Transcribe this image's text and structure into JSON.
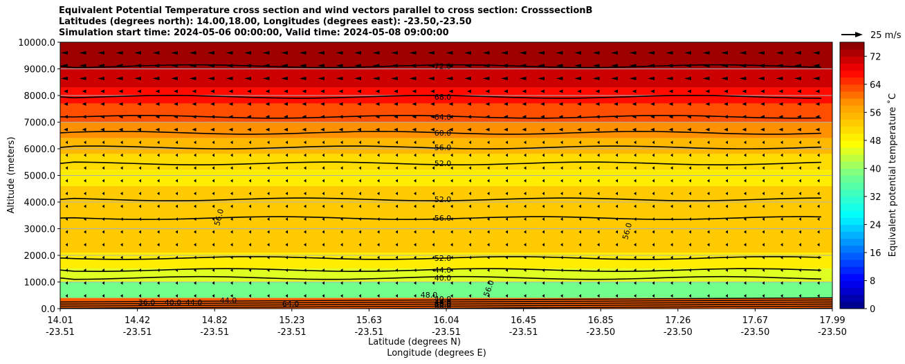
{
  "title_lines": [
    "Equivalent Potential Temperature cross section and wind vectors parallel to cross section: CrosssectionB",
    "Latitudes (degrees north): 14.00,18.00, Longitudes (degrees east): -23.50,-23.50",
    "Simulation start time: 2024-05-06 00:00:00, Valid time: 2024-05-08 09:00:00"
  ],
  "chart_data": {
    "type": "contourf",
    "ylabel": "Altitude (meters)",
    "xlabel_lat": "Latitude (degrees N)",
    "xlabel_lon": "Longitude (degrees E)",
    "ylim": [
      0,
      10000
    ],
    "yticks": [
      "0.0",
      "1000.0",
      "2000.0",
      "3000.0",
      "4000.0",
      "5000.0",
      "6000.0",
      "7000.0",
      "8000.0",
      "9000.0",
      "10000.0"
    ],
    "xticks": [
      {
        "lat": "14.01",
        "lon": "-23.51"
      },
      {
        "lat": "14.42",
        "lon": "-23.51"
      },
      {
        "lat": "14.82",
        "lon": "-23.51"
      },
      {
        "lat": "15.23",
        "lon": "-23.51"
      },
      {
        "lat": "15.63",
        "lon": "-23.51"
      },
      {
        "lat": "16.04",
        "lon": "-23.51"
      },
      {
        "lat": "16.45",
        "lon": "-23.51"
      },
      {
        "lat": "16.85",
        "lon": "-23.50"
      },
      {
        "lat": "17.26",
        "lon": "-23.50"
      },
      {
        "lat": "17.67",
        "lon": "-23.50"
      },
      {
        "lat": "17.99",
        "lon": "-23.50"
      }
    ],
    "colorbar": {
      "label": "Equivalent potential temperature ˚C",
      "range": [
        0,
        76
      ],
      "ticks": [
        "0",
        "8",
        "16",
        "24",
        "32",
        "40",
        "48",
        "56",
        "64",
        "72"
      ]
    },
    "quiver_key": "25 m/s",
    "contours": [
      {
        "level": "72.0",
        "altitude": 9100
      },
      {
        "level": "68.0",
        "altitude": 7950
      },
      {
        "level": "64.0",
        "altitude": 7200
      },
      {
        "level": "60.0",
        "altitude": 6600
      },
      {
        "level": "56.0",
        "altitude": 6050
      },
      {
        "level": "52.0",
        "altitude": 5450
      },
      {
        "level": "52.0",
        "altitude": 4100
      },
      {
        "level": "56.0",
        "altitude": 3400
      },
      {
        "level": "52.0",
        "altitude": 1900
      },
      {
        "level": "44.0",
        "altitude": 1450
      },
      {
        "level": "40.0",
        "altitude": 1150
      }
    ],
    "extra_contour_labels": [
      "56.0",
      "56.0",
      "56.0",
      "48.0",
      "44.0",
      "36.0",
      "40.0",
      "44.0",
      "64.0",
      "40.0",
      "44.0",
      "48.0",
      "60.0",
      "68.0"
    ],
    "equiv_temp_bands": [
      {
        "from": 9000,
        "to": 10000,
        "value": 74
      },
      {
        "from": 8300,
        "to": 9000,
        "value": 71
      },
      {
        "from": 7700,
        "to": 8300,
        "value": 67
      },
      {
        "from": 7000,
        "to": 7700,
        "value": 63
      },
      {
        "from": 6400,
        "to": 7000,
        "value": 59
      },
      {
        "from": 5800,
        "to": 6400,
        "value": 55
      },
      {
        "from": 5200,
        "to": 5800,
        "value": 51
      },
      {
        "from": 4600,
        "to": 5200,
        "value": 49
      },
      {
        "from": 2100,
        "to": 4600,
        "value": 53
      },
      {
        "from": 1500,
        "to": 2100,
        "value": 49
      },
      {
        "from": 1000,
        "to": 1500,
        "value": 45
      },
      {
        "from": 400,
        "to": 1000,
        "value": 38
      },
      {
        "from": 0,
        "to": 400,
        "value": 62
      }
    ]
  }
}
